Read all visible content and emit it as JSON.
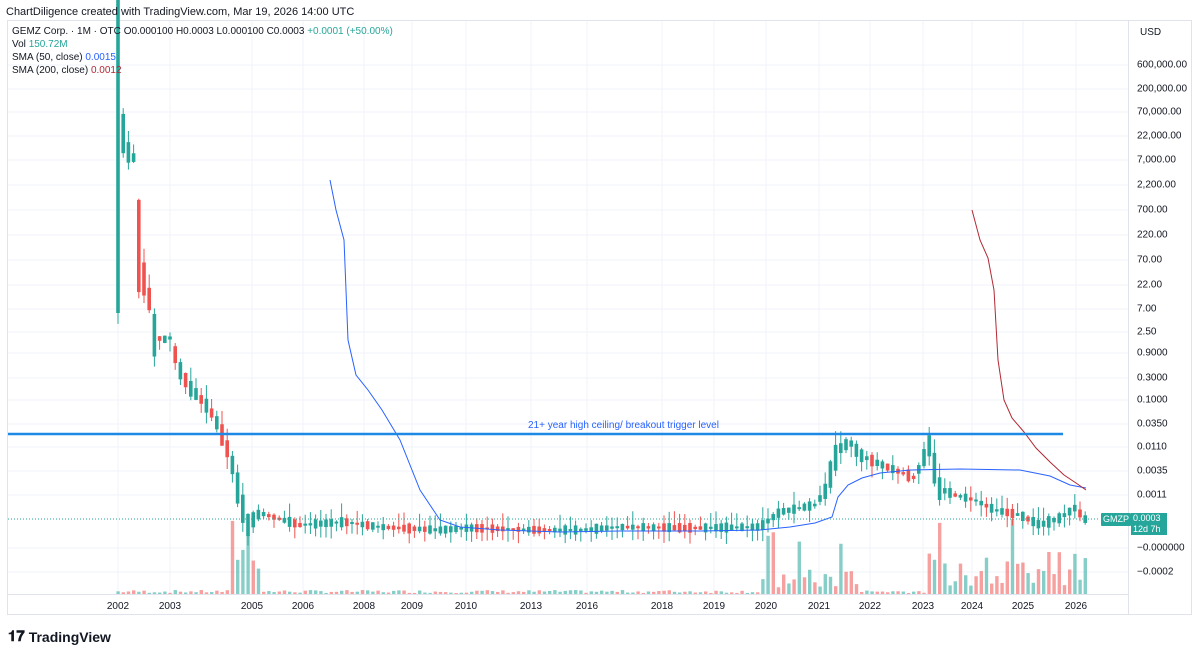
{
  "header": {
    "attribution": "ChartDiligence created with TradingView.com, Mar 19, 2026 14:00 UTC"
  },
  "legend": {
    "symbol": "GEMZ Corp. · 1M · OTC",
    "ohlc": "O0.000100 H0.0003 L0.000100 C0.0003",
    "change": "+0.0001 (+50.00%)",
    "vol_label": "Vol",
    "vol_value": "150.72M",
    "sma50_label": "SMA (50, close)",
    "sma50_value": "0.0015",
    "sma200_label": "SMA (200, close)",
    "sma200_value": "0.0012"
  },
  "price_axis": {
    "currency": "USD",
    "ticks": [
      "600,000.00",
      "200,000.00",
      "70,000.00",
      "22,000.00",
      "7,000.00",
      "2,200.00",
      "700.00",
      "220.00",
      "70.00",
      "22.00",
      "7.00",
      "2.50",
      "0.9000",
      "0.3000",
      "0.1000",
      "0.0350",
      "0.0110",
      "0.0035",
      "0.0011",
      "−0.000000",
      "−0.0002"
    ]
  },
  "time_axis": {
    "ticks": [
      "2002",
      "2003",
      "2005",
      "2006",
      "2008",
      "2009",
      "2010",
      "2013",
      "2016",
      "2018",
      "2019",
      "2020",
      "2021",
      "2022",
      "2023",
      "2024",
      "2025",
      "2026"
    ]
  },
  "last_price": {
    "ticker": "GMZP",
    "value": "0.0003",
    "countdown": "12d 7h"
  },
  "annotation": {
    "text": "21+ year high ceiling/ breakout trigger level"
  },
  "footer": {
    "brand": "TradingView"
  },
  "colors": {
    "up": "#26a69a",
    "down": "#ef5350",
    "sma50": "#2962ff",
    "sma200": "#b22833",
    "ceiling": "#1e88e5"
  },
  "chart_data": {
    "type": "candlestick",
    "title": "GEMZ Corp. · 1M · OTC",
    "y_scale": "log",
    "x": [
      "2002",
      "2003",
      "2005",
      "2006",
      "2008",
      "2009",
      "2010",
      "2013",
      "2016",
      "2018",
      "2019",
      "2020",
      "2021",
      "2022",
      "2023",
      "2024",
      "2025",
      "2026"
    ],
    "close_approx": [
      170000,
      8,
      0.0003,
      0.0002,
      0.0002,
      0.0002,
      0.0001,
      0.0001,
      0.0001,
      0.0001,
      0.0001,
      0.0003,
      0.02,
      0.005,
      0.003,
      0.0008,
      0.0003,
      0.0003
    ],
    "ceiling_level": 0.02,
    "series": [
      {
        "name": "SMA (50, close)",
        "last": 0.0015
      },
      {
        "name": "SMA (200, close)",
        "last": 0.0012
      }
    ],
    "last": {
      "open": 0.0001,
      "high": 0.0003,
      "low": 0.0001,
      "close": 0.0003,
      "change": 0.0001,
      "change_pct": 50.0,
      "volume": "150.72M"
    }
  }
}
